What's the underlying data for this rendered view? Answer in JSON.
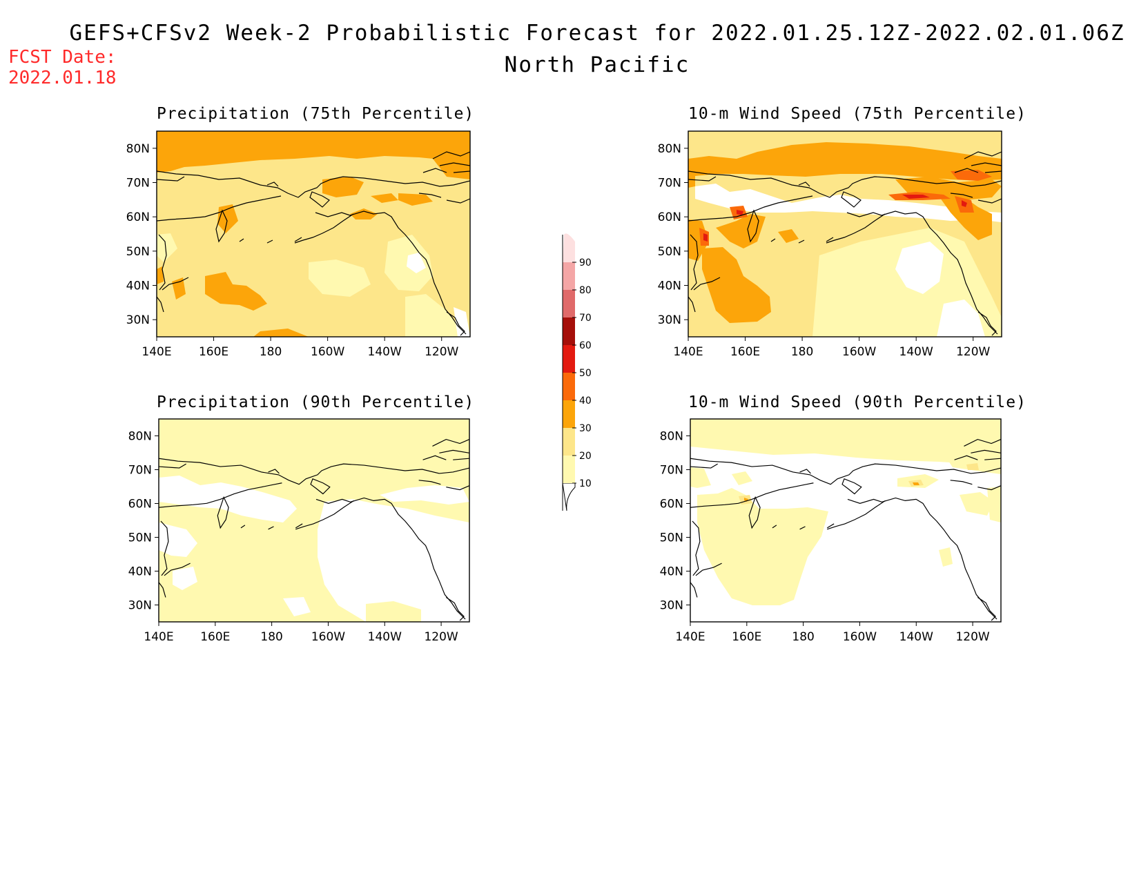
{
  "header": {
    "title": "GEFS+CFSv2 Week-2 Probabilistic Forecast for 2022.01.25.12Z-2022.02.01.06Z",
    "subtitle": "North Pacific",
    "fcst_label": "FCST Date:",
    "fcst_date": "2022.01.18"
  },
  "axes": {
    "lat_labels": [
      "80N",
      "70N",
      "60N",
      "50N",
      "40N",
      "30N"
    ],
    "lon_labels": [
      "140E",
      "160E",
      "180",
      "160W",
      "140W",
      "120W"
    ]
  },
  "panels": [
    {
      "title": "Precipitation (75th Percentile)"
    },
    {
      "title": "10-m Wind Speed (75th Percentile)"
    },
    {
      "title": "Precipitation (90th Percentile)"
    },
    {
      "title": "10-m Wind Speed (90th Percentile)"
    }
  ],
  "legend": {
    "levels": [
      "10",
      "20",
      "30",
      "40",
      "50",
      "60",
      "70",
      "80",
      "90"
    ],
    "colors": [
      "#fff9b0",
      "#fde68a",
      "#fca50a",
      "#fb6a0a",
      "#e31a10",
      "#a50f0a",
      "#e06a6a",
      "#f4a6a6",
      "#fde0e0"
    ]
  },
  "colors": {
    "c10": "#fff9b0",
    "c20": "#fde68a",
    "c30": "#fca50a",
    "c40": "#fb6a0a",
    "c50": "#e31a10",
    "fcst": "#ff2a2a"
  }
}
